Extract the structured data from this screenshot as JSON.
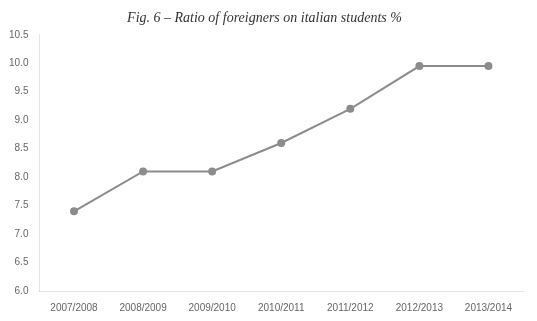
{
  "chart_data": {
    "type": "line",
    "title": "Fig. 6 – Ratio of foreigners on italian students %",
    "categories": [
      "2007/2008",
      "2008/2009",
      "2009/2010",
      "2010/2011",
      "2011/2012",
      "2012/2013",
      "2013/2014"
    ],
    "values": [
      7.4,
      8.1,
      8.1,
      8.6,
      9.2,
      9.95,
      9.95
    ],
    "color": "#8c8c8c",
    "marker": "circle",
    "ylim": [
      6.0,
      10.5
    ],
    "yticks": [
      {
        "value": 6,
        "label": "6.0"
      },
      6.5,
      {
        "value": 7,
        "label": "7.0"
      },
      7.5,
      {
        "value": 8,
        "label": "8.0"
      },
      8.5,
      {
        "value": 9,
        "label": "9.0"
      },
      9.5,
      {
        "value": 10,
        "label": "10.0"
      },
      10.5
    ],
    "grid": false
  }
}
